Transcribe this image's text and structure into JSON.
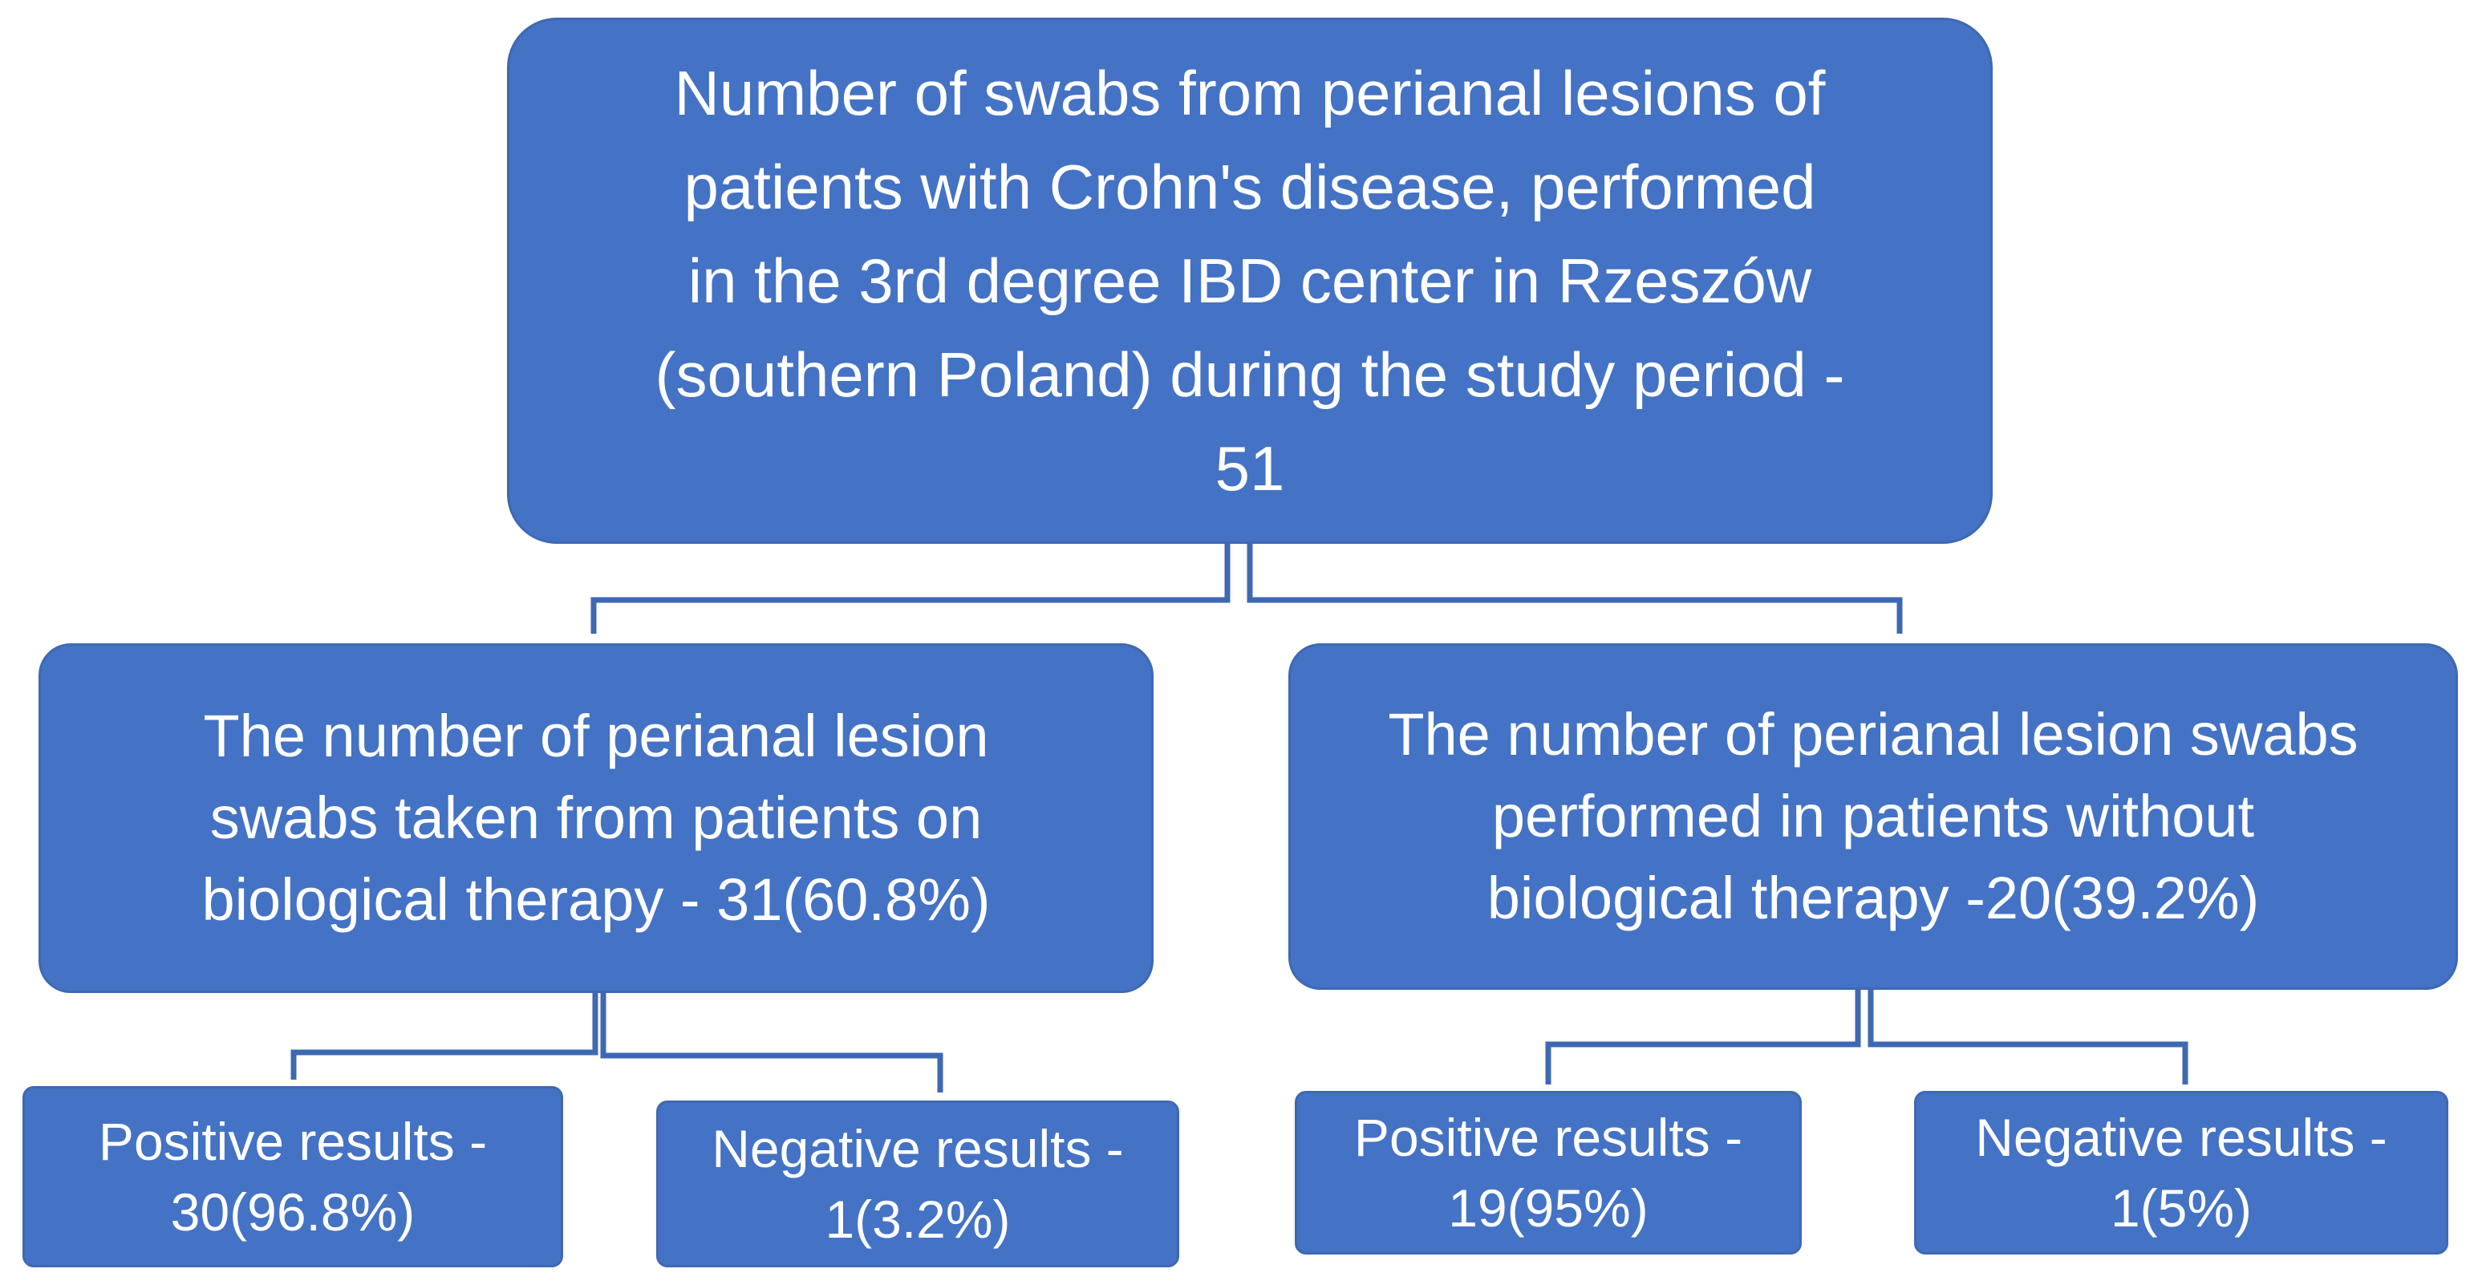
{
  "diagram": {
    "root": {
      "text": "Number of swabs from perianal lesions of\npatients with Crohn's disease, performed\nin the 3rd degree IBD center in Rzeszów\n(southern Poland) during the study period -\n51"
    },
    "branches": [
      {
        "text": "The number of perianal lesion\nswabs taken from patients on\nbiological therapy - 31(60.8%)",
        "children": [
          {
            "text": "Positive results -\n30(96.8%)"
          },
          {
            "text": "Negative results -\n1(3.2%)"
          }
        ]
      },
      {
        "text": "The number of perianal lesion swabs\nperformed in patients without\nbiological therapy -20(39.2%)",
        "children": [
          {
            "text": "Positive results -\n19(95%)"
          },
          {
            "text": "Negative results -\n1(5%)"
          }
        ]
      }
    ],
    "colors": {
      "box_fill": "#4472c4",
      "box_border": "#3f68b3",
      "connector": "#3f68b3",
      "text": "#ffffff"
    }
  }
}
